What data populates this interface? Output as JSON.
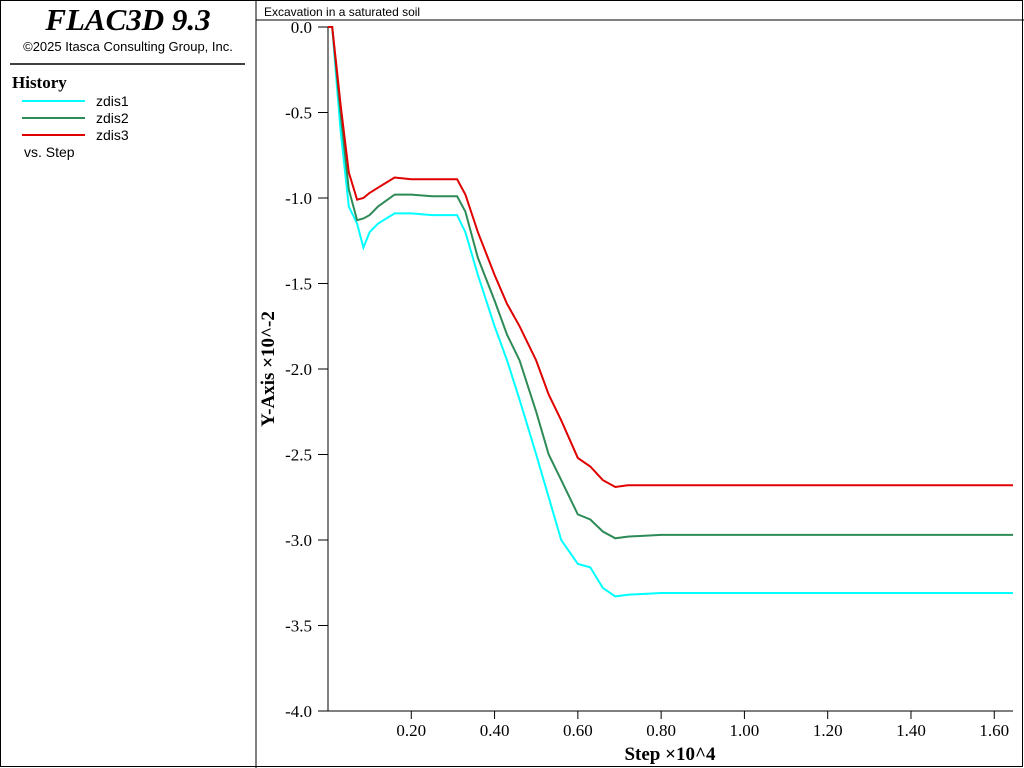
{
  "app": {
    "product": "FLAC3D 9.3",
    "copyright": "©2025 Itasca Consulting Group, Inc.",
    "legend_title": "History",
    "versus": "vs. Step"
  },
  "chart_data": {
    "type": "line",
    "title": "Excavation in a saturated soil",
    "x_label": "Step ×10^4",
    "y_label": "Y-Axis ×10^-2",
    "x": [
      0,
      0.01,
      0.02,
      0.03,
      0.05,
      0.07,
      0.085,
      0.1,
      0.12,
      0.16,
      0.2,
      0.25,
      0.31,
      0.33,
      0.36,
      0.4,
      0.43,
      0.46,
      0.5,
      0.53,
      0.56,
      0.6,
      0.63,
      0.66,
      0.69,
      0.72,
      0.8,
      1.0,
      1.645
    ],
    "series": [
      {
        "name": "zdis1",
        "color": "#00ffff",
        "values": [
          0,
          0,
          -0.3,
          -0.6,
          -1.05,
          -1.15,
          -1.29,
          -1.2,
          -1.15,
          -1.09,
          -1.09,
          -1.1,
          -1.1,
          -1.2,
          -1.45,
          -1.75,
          -1.95,
          -2.18,
          -2.5,
          -2.75,
          -3.0,
          -3.14,
          -3.16,
          -3.28,
          -3.33,
          -3.32,
          -3.31,
          -3.31,
          -3.31
        ]
      },
      {
        "name": "zdis2",
        "color": "#2e8b57",
        "values": [
          0,
          0,
          -0.25,
          -0.5,
          -0.95,
          -1.13,
          -1.12,
          -1.1,
          -1.05,
          -0.98,
          -0.98,
          -0.99,
          -0.99,
          -1.08,
          -1.35,
          -1.6,
          -1.8,
          -1.95,
          -2.25,
          -2.5,
          -2.65,
          -2.85,
          -2.88,
          -2.95,
          -2.99,
          -2.98,
          -2.97,
          -2.97,
          -2.97
        ]
      },
      {
        "name": "zdis3",
        "color": "#e00000",
        "values": [
          0,
          0,
          -0.22,
          -0.45,
          -0.85,
          -1.01,
          -1.0,
          -0.97,
          -0.94,
          -0.88,
          -0.89,
          -0.89,
          -0.89,
          -0.98,
          -1.2,
          -1.45,
          -1.62,
          -1.75,
          -1.95,
          -2.15,
          -2.3,
          -2.52,
          -2.57,
          -2.65,
          -2.69,
          -2.68,
          -2.68,
          -2.68,
          -2.68
        ]
      }
    ],
    "xlim": [
      0,
      1.645
    ],
    "ylim": [
      -4.0,
      0.0
    ],
    "xticks": [
      {
        "value": 0.2,
        "label": "0.20"
      },
      {
        "value": 0.4,
        "label": "0.40"
      },
      {
        "value": 0.6,
        "label": "0.60"
      },
      {
        "value": 0.8,
        "label": "0.80"
      },
      {
        "value": 1.0,
        "label": "1.00"
      },
      {
        "value": 1.2,
        "label": "1.20"
      },
      {
        "value": 1.4,
        "label": "1.40"
      },
      {
        "value": 1.6,
        "label": "1.60"
      }
    ],
    "yticks": [
      {
        "value": 0,
        "label": "0.0"
      },
      -0.5,
      {
        "value": -1,
        "label": "-1.0"
      },
      -1.5,
      {
        "value": -2,
        "label": "-2.0"
      },
      -2.5,
      {
        "value": -3,
        "label": "-3.0"
      },
      -3.5,
      {
        "value": -4,
        "label": "-4.0"
      }
    ]
  }
}
